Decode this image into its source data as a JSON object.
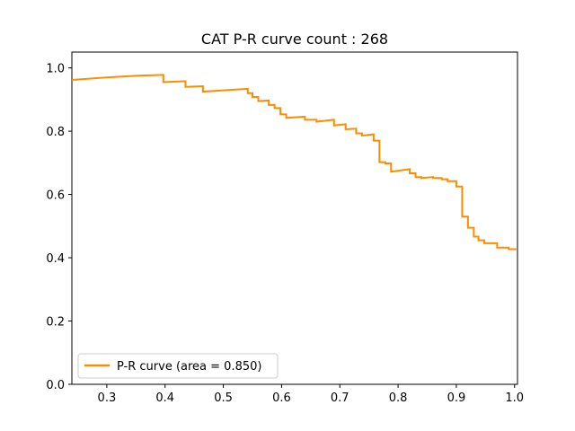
{
  "chart_data": {
    "type": "line",
    "title": "CAT P-R curve count : 268",
    "xlabel": "",
    "ylabel": "",
    "xlim": [
      0.24,
      1.005
    ],
    "ylim": [
      0.0,
      1.05
    ],
    "x_ticks": [
      0.3,
      0.4,
      0.5,
      0.6,
      0.7,
      0.8,
      0.9,
      1.0
    ],
    "x_tick_labels": [
      "0.3",
      "0.4",
      "0.5",
      "0.6",
      "0.7",
      "0.8",
      "0.9",
      "1.0"
    ],
    "y_ticks": [
      0.0,
      0.2,
      0.4,
      0.6,
      0.8,
      1.0
    ],
    "y_tick_labels": [
      "0.0",
      "0.2",
      "0.4",
      "0.6",
      "0.8",
      "1.0"
    ],
    "grid": false,
    "legend_position": "bottom-left",
    "series": [
      {
        "name": "P-R curve (area = 0.850)",
        "color": "#ff8c00",
        "points": [
          [
            0.24,
            0.962
          ],
          [
            0.3,
            0.97
          ],
          [
            0.35,
            0.975
          ],
          [
            0.397,
            0.978
          ],
          [
            0.397,
            0.955
          ],
          [
            0.435,
            0.958
          ],
          [
            0.435,
            0.94
          ],
          [
            0.465,
            0.942
          ],
          [
            0.465,
            0.925
          ],
          [
            0.542,
            0.934
          ],
          [
            0.542,
            0.92
          ],
          [
            0.55,
            0.92
          ],
          [
            0.55,
            0.908
          ],
          [
            0.56,
            0.908
          ],
          [
            0.56,
            0.895
          ],
          [
            0.578,
            0.897
          ],
          [
            0.578,
            0.883
          ],
          [
            0.588,
            0.883
          ],
          [
            0.588,
            0.873
          ],
          [
            0.598,
            0.873
          ],
          [
            0.598,
            0.853
          ],
          [
            0.608,
            0.853
          ],
          [
            0.608,
            0.842
          ],
          [
            0.64,
            0.846
          ],
          [
            0.64,
            0.836
          ],
          [
            0.66,
            0.836
          ],
          [
            0.66,
            0.83
          ],
          [
            0.69,
            0.836
          ],
          [
            0.69,
            0.818
          ],
          [
            0.71,
            0.822
          ],
          [
            0.71,
            0.806
          ],
          [
            0.728,
            0.808
          ],
          [
            0.728,
            0.793
          ],
          [
            0.738,
            0.793
          ],
          [
            0.738,
            0.786
          ],
          [
            0.758,
            0.79
          ],
          [
            0.758,
            0.77
          ],
          [
            0.768,
            0.77
          ],
          [
            0.768,
            0.702
          ],
          [
            0.778,
            0.702
          ],
          [
            0.778,
            0.698
          ],
          [
            0.788,
            0.698
          ],
          [
            0.788,
            0.672
          ],
          [
            0.82,
            0.68
          ],
          [
            0.82,
            0.667
          ],
          [
            0.83,
            0.667
          ],
          [
            0.83,
            0.655
          ],
          [
            0.84,
            0.655
          ],
          [
            0.84,
            0.652
          ],
          [
            0.86,
            0.655
          ],
          [
            0.86,
            0.652
          ],
          [
            0.875,
            0.652
          ],
          [
            0.875,
            0.648
          ],
          [
            0.885,
            0.648
          ],
          [
            0.885,
            0.642
          ],
          [
            0.9,
            0.642
          ],
          [
            0.9,
            0.625
          ],
          [
            0.91,
            0.625
          ],
          [
            0.91,
            0.53
          ],
          [
            0.92,
            0.53
          ],
          [
            0.92,
            0.495
          ],
          [
            0.93,
            0.495
          ],
          [
            0.93,
            0.467
          ],
          [
            0.938,
            0.467
          ],
          [
            0.938,
            0.455
          ],
          [
            0.948,
            0.455
          ],
          [
            0.948,
            0.446
          ],
          [
            0.97,
            0.446
          ],
          [
            0.97,
            0.432
          ],
          [
            0.99,
            0.432
          ],
          [
            0.99,
            0.427
          ],
          [
            1.003,
            0.427
          ]
        ]
      }
    ]
  }
}
